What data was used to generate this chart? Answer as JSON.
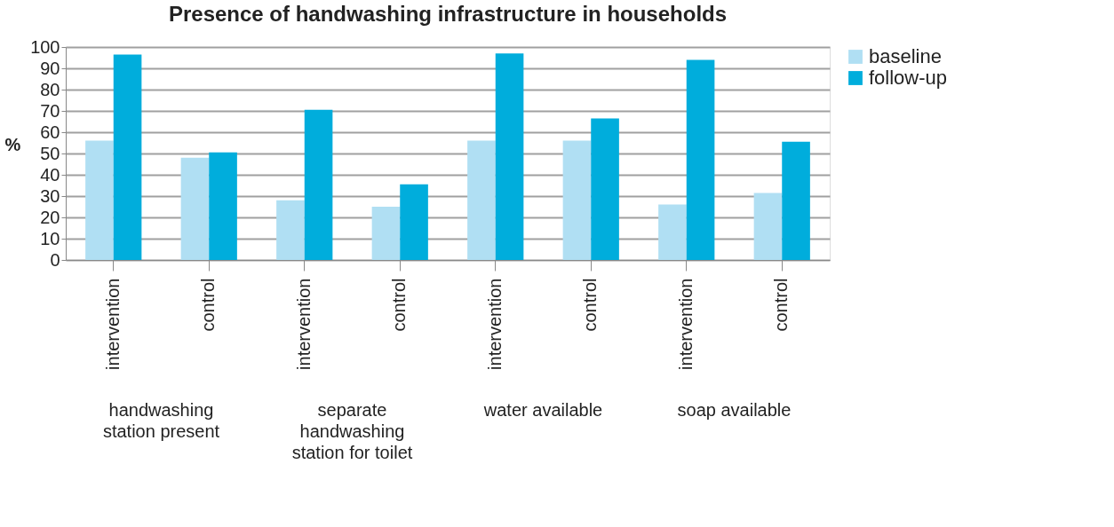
{
  "chart_data": {
    "type": "bar",
    "title": "Presence of handwashing infrastructure in households",
    "ylabel": "%",
    "categories": [
      "intervention",
      "control",
      "intervention",
      "control",
      "intervention",
      "control",
      "intervention",
      "control"
    ],
    "series": [
      {
        "name": "baseline",
        "color": "#b0dff3",
        "values": [
          56,
          48,
          28,
          25,
          56,
          56,
          26,
          31.5
        ]
      },
      {
        "name": "follow-up",
        "color": "#00addc",
        "values": [
          96.5,
          50.5,
          70.5,
          35.5,
          97,
          66.5,
          94,
          55.5
        ]
      }
    ],
    "annotations": [
      "handwashing station present",
      "separate handwashing station for toilet",
      "water available",
      "soap available"
    ],
    "ylim": [
      0,
      100
    ],
    "yticks": [
      0,
      10,
      20,
      30,
      40,
      50,
      60,
      70,
      80,
      90,
      100
    ],
    "grid": "y",
    "legend": "right"
  }
}
